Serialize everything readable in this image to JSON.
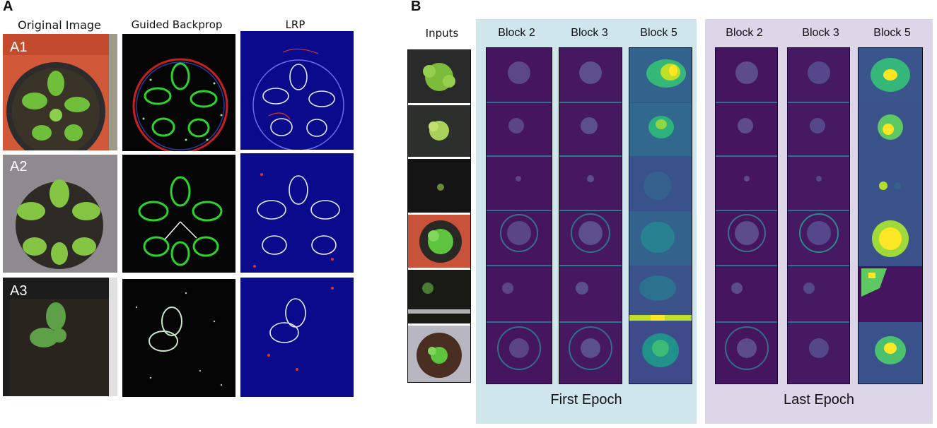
{
  "panel_a": {
    "letter": "A",
    "columns": [
      "Original Image",
      "Guided Backprop",
      "LRP"
    ],
    "rows": [
      "A1",
      "A2",
      "A3"
    ]
  },
  "panel_b": {
    "letter": "B",
    "inputs_label": "Inputs",
    "groups": [
      {
        "title": "First Epoch",
        "blocks": [
          "Block 2",
          "Block 3",
          "Block 5"
        ]
      },
      {
        "title": "Last Epoch",
        "blocks": [
          "Block 2",
          "Block 3",
          "Block 5"
        ]
      }
    ]
  },
  "colors": {
    "first_epoch_bg": "#cfe6ec",
    "last_epoch_bg": "#ddd5e8",
    "heatmap_low": "#45155f",
    "heatmap_mid": "#21908c",
    "heatmap_high": "#fde725",
    "lrp_bg": "#0a0a8c",
    "guided_edge": "#2bd42b",
    "plant_green": "#6fbf3a"
  }
}
